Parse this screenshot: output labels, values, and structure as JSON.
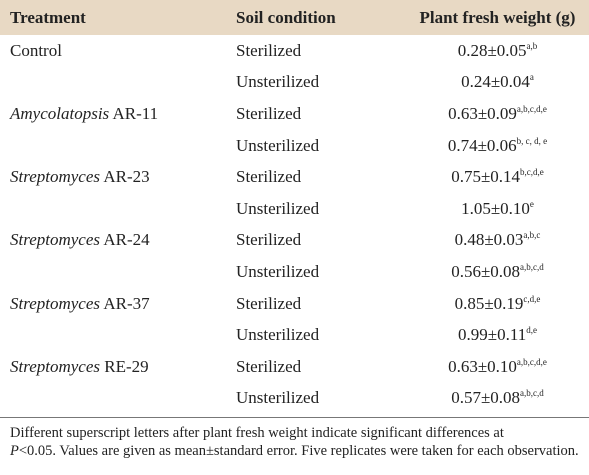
{
  "table": {
    "columns": [
      "Treatment",
      "Soil condition",
      "Plant fresh weight (g)"
    ],
    "groups": [
      {
        "name": "Control",
        "rows": [
          {
            "soil": "Sterilized",
            "weight": "0.28±0.05",
            "sup": "a,b"
          },
          {
            "soil": "Unsterilized",
            "weight": "0.24±0.04",
            "sup": "a"
          }
        ]
      },
      {
        "genus": "Amycolatopsis",
        "strain": "AR-11",
        "rows": [
          {
            "soil": "Sterilized",
            "weight": "0.63±0.09",
            "sup": "a,b,c,d,e"
          },
          {
            "soil": "Unsterilized",
            "weight": "0.74±0.06",
            "sup": "b, c, d, e"
          }
        ]
      },
      {
        "genus": "Streptomyces",
        "strain": "AR-23",
        "rows": [
          {
            "soil": "Sterilized",
            "weight": "0.75±0.14",
            "sup": "b,c,d,e"
          },
          {
            "soil": "Unsterilized",
            "weight": "1.05±0.10",
            "sup": "e"
          }
        ]
      },
      {
        "genus": "Streptomyces",
        "strain": "AR-24",
        "rows": [
          {
            "soil": "Sterilized",
            "weight": "0.48±0.03",
            "sup": "a,b,c"
          },
          {
            "soil": "Unsterilized",
            "weight": "0.56±0.08",
            "sup": "a,b,c,d"
          }
        ]
      },
      {
        "genus": "Streptomyces",
        "strain": "AR-37",
        "rows": [
          {
            "soil": "Sterilized",
            "weight": "0.85±0.19",
            "sup": "c,d,e"
          },
          {
            "soil": "Unsterilized",
            "weight": "0.99±0.11",
            "sup": "d,e"
          }
        ]
      },
      {
        "genus": "Streptomyces",
        "strain": "RE-29",
        "rows": [
          {
            "soil": "Sterilized",
            "weight": "0.63±0.10",
            "sup": "a,b,c,d,e"
          },
          {
            "soil": "Unsterilized",
            "weight": "0.57±0.08",
            "sup": "a,b,c,d"
          }
        ]
      }
    ],
    "note": [
      "Different superscript letters after plant fresh weight indicate significant differences at",
      "P",
      "<0.05. Values are given as mean±standard error. Five replicates were taken for each observation."
    ]
  }
}
